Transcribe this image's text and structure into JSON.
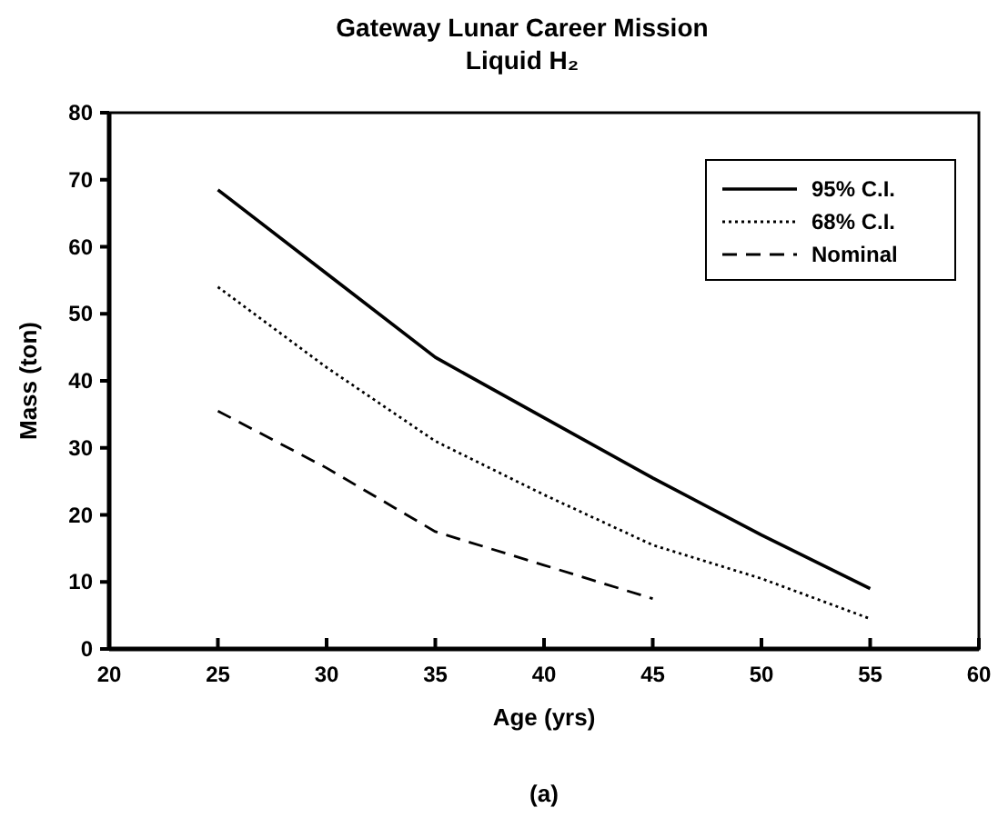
{
  "chart_data": {
    "type": "line",
    "title": "Gateway Lunar Career Mission",
    "subtitle": "Liquid H₂",
    "xlabel": "Age (yrs)",
    "ylabel": "Mass (ton)",
    "annotations": [
      "(a)"
    ],
    "x": [
      25,
      30,
      35,
      40,
      45,
      50,
      55
    ],
    "series": [
      {
        "name": "95% C.I.",
        "color": "#000000",
        "line_style": "solid",
        "values": [
          68.5,
          56,
          43.5,
          34.5,
          25.5,
          17,
          9
        ]
      },
      {
        "name": "68% C.I.",
        "color": "#000000",
        "line_style": "dotted",
        "values": [
          54,
          42,
          31,
          23,
          15.5,
          10.5,
          4.5
        ]
      },
      {
        "name": "Nominal",
        "color": "#000000",
        "line_style": "dashed",
        "values": [
          35.5,
          27,
          17.5,
          12.5,
          7.5,
          null,
          null
        ]
      }
    ],
    "xlim": [
      20,
      60
    ],
    "xticks": [
      20,
      25,
      30,
      35,
      40,
      45,
      50,
      55,
      60
    ],
    "ylim": [
      0,
      80
    ],
    "yticks": [
      0,
      10,
      20,
      30,
      40,
      50,
      60,
      70,
      80
    ],
    "grid": false,
    "legend": "top right",
    "marker": "none"
  }
}
